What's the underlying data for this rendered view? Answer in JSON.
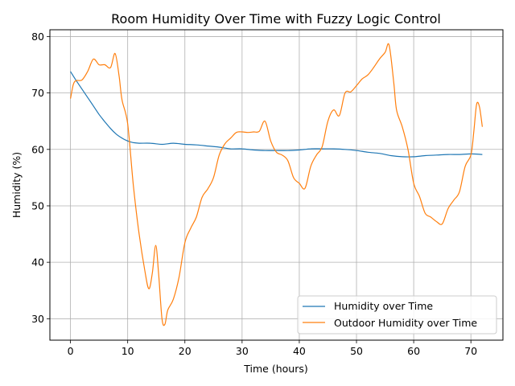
{
  "chart_data": {
    "type": "line",
    "title": "Room Humidity Over Time with Fuzzy Logic Control",
    "xlabel": "Time (hours)",
    "ylabel": "Humidity (%)",
    "xlim": [
      -3.6,
      75.6
    ],
    "ylim": [
      26.2,
      81.2
    ],
    "xticks": [
      0,
      10,
      20,
      30,
      40,
      50,
      60,
      70
    ],
    "yticks": [
      30,
      40,
      50,
      60,
      70,
      80
    ],
    "grid": true,
    "legend_position": "lower-right",
    "series": [
      {
        "name": "Humidity over Time",
        "color": "#1f77b4",
        "x": [
          0,
          1,
          2,
          3,
          4,
          5,
          6,
          7,
          8,
          9,
          10,
          11,
          12,
          14,
          16,
          18,
          20,
          22,
          24,
          26,
          28,
          30,
          32,
          34,
          36,
          38,
          40,
          42,
          44,
          46,
          48,
          50,
          52,
          54,
          56,
          58,
          60,
          62,
          64,
          66,
          68,
          70,
          72
        ],
        "y": [
          73.8,
          72.2,
          70.7,
          69.2,
          67.7,
          66.2,
          64.9,
          63.7,
          62.7,
          62.0,
          61.5,
          61.2,
          61.1,
          61.1,
          60.9,
          61.1,
          60.9,
          60.8,
          60.6,
          60.4,
          60.1,
          60.1,
          59.9,
          59.8,
          59.8,
          59.8,
          59.9,
          60.1,
          60.1,
          60.1,
          60.0,
          59.8,
          59.5,
          59.3,
          58.9,
          58.7,
          58.7,
          58.9,
          59.0,
          59.1,
          59.1,
          59.2,
          59.1
        ]
      },
      {
        "name": "Outdoor Humidity over Time",
        "color": "#ff7f0e",
        "x": [
          0,
          0.5,
          1,
          2,
          3,
          4,
          5,
          6,
          7,
          7.8,
          8.5,
          9,
          10,
          11,
          12,
          13,
          13.7,
          14.3,
          14.9,
          15.4,
          16,
          16.5,
          17,
          18,
          19,
          20,
          21,
          22,
          23,
          24,
          25,
          26,
          27,
          28,
          29,
          30,
          31,
          32,
          33,
          34,
          35,
          36,
          37,
          38,
          39,
          40,
          41,
          42,
          43,
          44,
          45,
          46,
          47,
          48,
          49,
          50,
          51,
          52,
          53,
          54,
          55,
          55.7,
          56.5,
          57,
          58,
          59,
          60,
          61,
          62,
          63,
          64,
          65,
          66,
          67,
          68,
          69,
          70,
          70.5,
          71,
          71.5,
          72
        ],
        "y": [
          69.0,
          71.5,
          72.2,
          72.3,
          73.8,
          76.0,
          75.0,
          75.0,
          74.5,
          77.0,
          73.0,
          68.8,
          64.5,
          53.5,
          45.0,
          38.5,
          35.3,
          38.0,
          43.0,
          38.0,
          30.0,
          29.0,
          31.5,
          33.5,
          37.5,
          43.5,
          46.0,
          48.0,
          51.5,
          53.0,
          55.0,
          59.0,
          61.0,
          62.0,
          63.0,
          63.1,
          63.0,
          63.1,
          63.2,
          65.0,
          61.5,
          59.5,
          59.0,
          58.0,
          55.0,
          54.0,
          53.1,
          57.0,
          59.0,
          60.5,
          65.0,
          67.0,
          66.0,
          70.0,
          70.2,
          71.3,
          72.5,
          73.2,
          74.5,
          76.0,
          77.2,
          78.5,
          72.0,
          67.0,
          64.0,
          60.0,
          54.0,
          51.7,
          48.7,
          48.0,
          47.2,
          46.8,
          49.5,
          51.0,
          52.5,
          57.0,
          59.0,
          63.0,
          68.0,
          67.5,
          64.0
        ]
      }
    ]
  }
}
